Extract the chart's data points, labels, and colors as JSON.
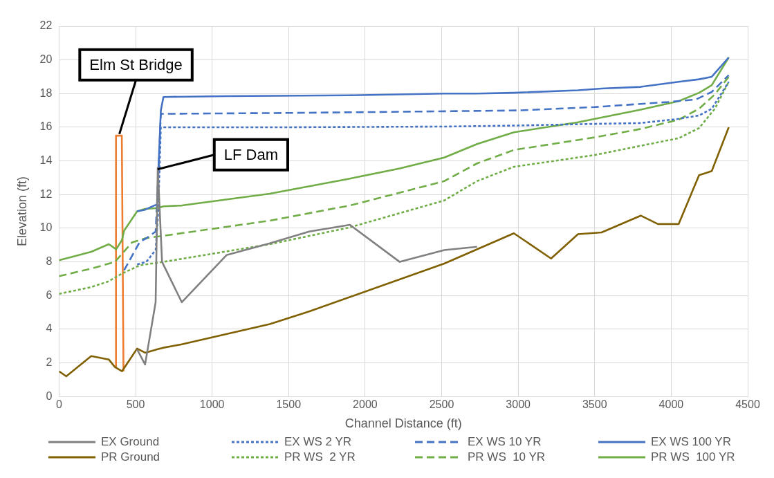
{
  "chart_data": {
    "type": "line",
    "xlabel": "Channel Distance (ft)",
    "ylabel": "Elevation (ft)",
    "xlim": [
      0,
      4500
    ],
    "xticks": [
      0,
      500,
      1000,
      1500,
      2000,
      2500,
      3000,
      3500,
      4000,
      4500
    ],
    "ylim": [
      0,
      22
    ],
    "yticks": [
      0,
      2,
      4,
      6,
      8,
      10,
      12,
      14,
      16,
      18,
      20,
      22
    ],
    "grid": true,
    "legend": "bottom",
    "marker": "none",
    "series": [
      {
        "name": "EX Ground",
        "color": "#808080",
        "line_style": "solid",
        "x": [
          510,
          562,
          631,
          645,
          673,
          802,
          1094,
          1377,
          1634,
          1900,
          2226,
          2517,
          2731
        ],
        "values": [
          2.8,
          1.9,
          5.6,
          13.6,
          8.0,
          5.6,
          8.4,
          9.1,
          9.8,
          10.2,
          8.0,
          8.7,
          8.9
        ]
      },
      {
        "name": "EX WS 2 YR",
        "color": "#4472c4",
        "line_style": "dotted",
        "x": [
          510,
          570,
          631,
          648,
          665,
          716,
          1500,
          2517,
          2972,
          3500,
          3801,
          4049,
          4182,
          4265,
          4376
        ],
        "values": [
          7.85,
          8.0,
          8.7,
          11.0,
          16.0,
          16.0,
          16.0,
          16.04,
          16.1,
          16.2,
          16.25,
          16.5,
          16.7,
          17.1,
          18.7
        ]
      },
      {
        "name": "EX WS 10 YR",
        "color": "#4472c4",
        "line_style": "dashed",
        "x": [
          425,
          528,
          570,
          631,
          648,
          665,
          716,
          1500,
          2517,
          3003,
          3500,
          3980,
          4161,
          4265,
          4376
        ],
        "values": [
          7.5,
          9.2,
          9.4,
          9.8,
          13.0,
          16.8,
          16.8,
          16.85,
          16.95,
          17.0,
          17.2,
          17.5,
          17.65,
          18.1,
          19.1
        ]
      },
      {
        "name": "EX WS 100 YR",
        "color": "#4472c4",
        "line_style": "solid",
        "x": [
          510,
          562,
          622,
          640,
          665,
          682,
          1094,
          1900,
          2517,
          2731,
          2972,
          3391,
          3545,
          3801,
          4049,
          4182,
          4265,
          4376
        ],
        "values": [
          11.0,
          11.1,
          11.35,
          11.4,
          17.0,
          17.8,
          17.85,
          17.9,
          18.0,
          18.0,
          18.05,
          18.2,
          18.3,
          18.4,
          18.7,
          18.85,
          19.0,
          20.15
        ]
      },
      {
        "name": "PR Ground",
        "color": "#806000",
        "line_style": "solid",
        "x": [
          0,
          47,
          210,
          325,
          365,
          411,
          510,
          562,
          622,
          640,
          682,
          802,
          1377,
          1634,
          2517,
          2972,
          3215,
          3391,
          3545,
          3801,
          3913,
          4049,
          4182,
          4265,
          4376
        ],
        "values": [
          1.5,
          1.2,
          2.4,
          2.2,
          1.75,
          1.5,
          2.85,
          2.6,
          2.75,
          2.8,
          2.9,
          3.1,
          4.3,
          5.05,
          7.9,
          9.7,
          8.2,
          9.65,
          9.75,
          10.75,
          10.25,
          10.25,
          13.15,
          13.4,
          16.0
        ]
      },
      {
        "name": "PR WS  2 YR",
        "color": "#70ad47",
        "line_style": "dotted",
        "x": [
          0,
          210,
          325,
          411,
          528,
          682,
          1377,
          1900,
          2517,
          2731,
          2972,
          3500,
          3801,
          4049,
          4182,
          4285,
          4376
        ],
        "values": [
          6.1,
          6.5,
          6.85,
          7.3,
          7.8,
          8.0,
          9.05,
          10.05,
          11.65,
          12.8,
          13.65,
          14.35,
          14.9,
          15.35,
          15.95,
          17.1,
          18.7
        ]
      },
      {
        "name": "PR WS  10 YR",
        "color": "#70ad47",
        "line_style": "dashed",
        "x": [
          0,
          210,
          365,
          476,
          562,
          682,
          1377,
          1900,
          2517,
          2731,
          2972,
          3500,
          3801,
          4049,
          4182,
          4285,
          4376
        ],
        "values": [
          7.15,
          7.6,
          8.0,
          9.15,
          9.4,
          9.55,
          10.45,
          11.35,
          12.8,
          13.85,
          14.65,
          15.4,
          15.9,
          16.45,
          17.1,
          17.95,
          19.0
        ]
      },
      {
        "name": "PR WS  100 YR",
        "color": "#70ad47",
        "line_style": "solid",
        "x": [
          0,
          210,
          325,
          373,
          411,
          425,
          510,
          562,
          648,
          682,
          802,
          1377,
          1900,
          2226,
          2517,
          2731,
          2972,
          3391,
          3801,
          4049,
          4182,
          4265,
          4376
        ],
        "values": [
          8.1,
          8.6,
          9.05,
          8.75,
          9.3,
          9.85,
          11.0,
          11.15,
          11.2,
          11.3,
          11.35,
          12.05,
          12.95,
          13.55,
          14.2,
          15.0,
          15.7,
          16.3,
          17.05,
          17.55,
          18.05,
          18.5,
          20.15
        ]
      },
      {
        "color": "#ed7d31",
        "line_style": "solid",
        "x": [
          370,
          372,
          410,
          421
        ],
        "values": [
          1.75,
          15.5,
          15.5,
          1.5
        ]
      }
    ],
    "annotations": [
      {
        "text": "Elm St Bridge",
        "x": 394,
        "y": 15.6
      },
      {
        "text": "LF Dam",
        "x": 644,
        "y": 13.5
      }
    ]
  }
}
